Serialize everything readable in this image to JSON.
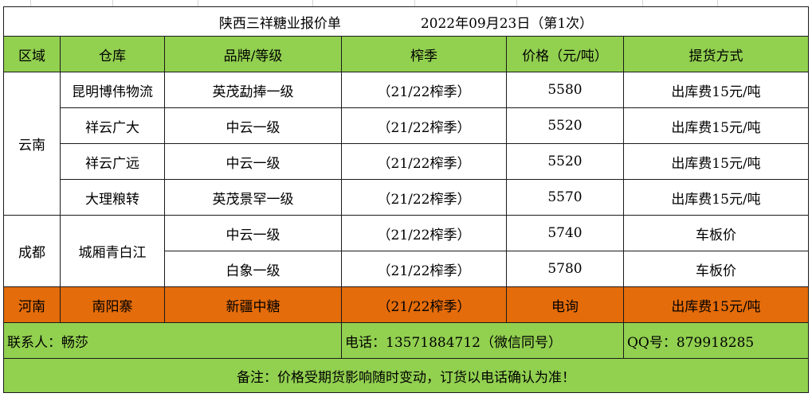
{
  "title": {
    "company": "陕西三祥糖业报价单",
    "date": "2022年09月23日（第1次）"
  },
  "headers": [
    "区域",
    "仓库",
    "品牌/等级",
    "榨季",
    "价格（元/吨）",
    "提货方式"
  ],
  "rows": [
    {
      "region": "云南",
      "warehouse": "昆明博伟物流",
      "brand": "英茂勐捧一级",
      "season": "（21/22榨季）",
      "price": "5580",
      "delivery": "出库费15元/吨"
    },
    {
      "warehouse": "祥云广大",
      "brand": "中云一级",
      "season": "（21/22榨季）",
      "price": "5520",
      "delivery": "出库费15元/吨"
    },
    {
      "warehouse": "祥云广远",
      "brand": "中云一级",
      "season": "（21/22榨季）",
      "price": "5520",
      "delivery": "出库费15元/吨"
    },
    {
      "warehouse": "大理粮转",
      "brand": "英茂景罕一级",
      "season": "（21/22榨季）",
      "price": "5570",
      "delivery": "出库费15元/吨"
    },
    {
      "region": "成都",
      "warehouse": "城厢青白江",
      "brand": "中云一级",
      "season": "（21/22榨季）",
      "price": "5740",
      "delivery": "车板价"
    },
    {
      "brand": "白象一级",
      "season": "（21/22榨季）",
      "price": "5780",
      "delivery": "车板价"
    },
    {
      "region": "河南",
      "warehouse": "南阳寨",
      "brand": "新疆中糖",
      "season": "（21/22榨季）",
      "price": "电询",
      "delivery": "出库费15元/吨"
    }
  ],
  "contact": {
    "person": "联系人：畅莎",
    "phone": "电话：13571884712（微信同号）",
    "qq": "QQ号：879918285"
  },
  "note": "备注：价格受期货影响随时变动，订货以电话确认为准！"
}
